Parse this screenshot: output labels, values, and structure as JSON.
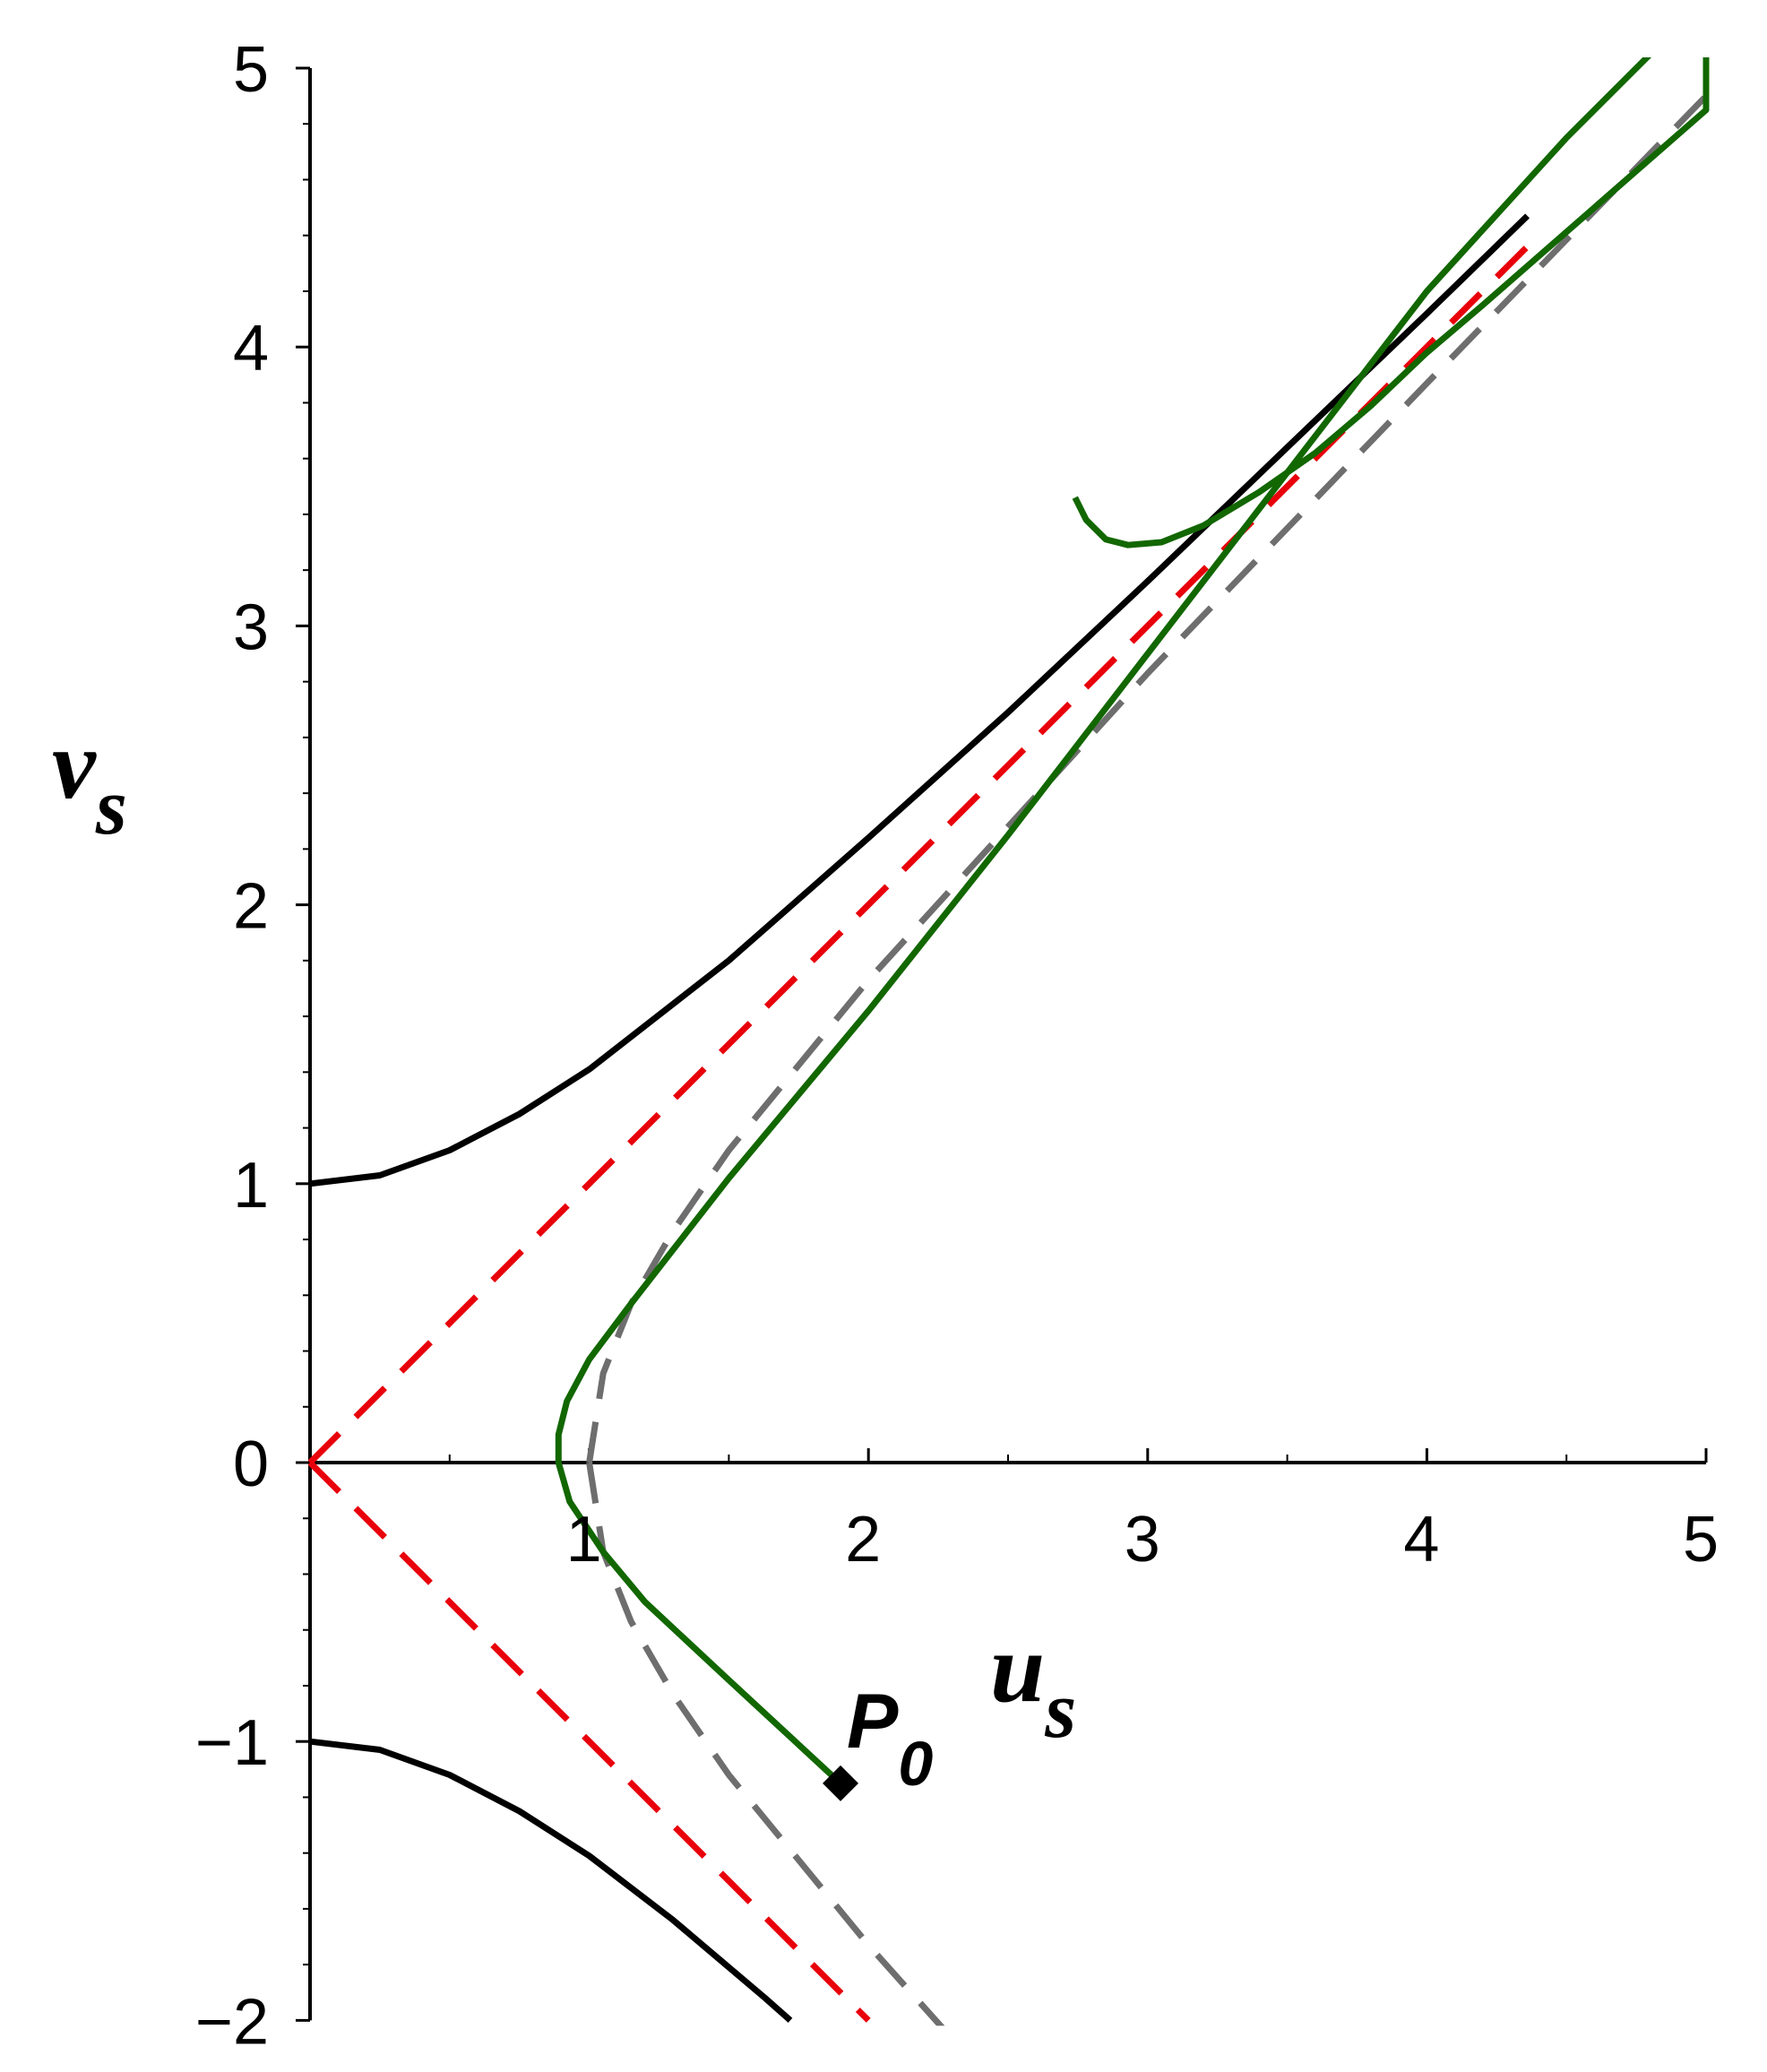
{
  "chart_data": {
    "type": "line",
    "title": "",
    "xlabel": {
      "main": "u",
      "sub": "s"
    },
    "ylabel": {
      "main": "v",
      "sub": "s"
    },
    "xlim": [
      0,
      5
    ],
    "ylim": [
      -2,
      5
    ],
    "x_ticks": [
      "1",
      "2",
      "3",
      "4",
      "5"
    ],
    "y_ticks": [
      "-2",
      "-1",
      "0",
      "1",
      "2",
      "3",
      "4",
      "5"
    ],
    "grid": false,
    "legend": "none",
    "series": [
      {
        "color": "#000000",
        "style": "solid",
        "points": [
          [
            0,
            1
          ],
          [
            0.25,
            1.03
          ],
          [
            0.5,
            1.12
          ],
          [
            0.75,
            1.25
          ],
          [
            1,
            1.41
          ],
          [
            1.5,
            1.8
          ],
          [
            2,
            2.24
          ],
          [
            2.5,
            2.69
          ],
          [
            3,
            3.16
          ],
          [
            3.5,
            3.64
          ],
          [
            4,
            4.12
          ],
          [
            4.36,
            4.47
          ]
        ]
      },
      {
        "color": "#000000",
        "style": "solid",
        "points": [
          [
            0,
            -1
          ],
          [
            0.25,
            -1.03
          ],
          [
            0.5,
            -1.12
          ],
          [
            0.75,
            -1.25
          ],
          [
            1,
            -1.41
          ],
          [
            1.3,
            -1.64
          ],
          [
            1.63,
            -1.92
          ],
          [
            1.72,
            -2
          ]
        ]
      },
      {
        "color": "#e8000b",
        "style": "dashed",
        "points": [
          [
            0,
            0
          ],
          [
            4.4,
            4.4
          ]
        ]
      },
      {
        "color": "#e8000b",
        "style": "dashed",
        "points": [
          [
            0,
            0
          ],
          [
            2,
            -2
          ]
        ]
      },
      {
        "color": "#6e6e6e",
        "style": "dashed",
        "points": [
          [
            1,
            0
          ],
          [
            1.05,
            0.32
          ],
          [
            1.15,
            0.57
          ],
          [
            1.3,
            0.83
          ],
          [
            1.5,
            1.12
          ],
          [
            2,
            1.73
          ],
          [
            3,
            2.83
          ],
          [
            4,
            3.87
          ],
          [
            5,
            4.9
          ]
        ]
      },
      {
        "color": "#6e6e6e",
        "style": "dashed",
        "points": [
          [
            1,
            0
          ],
          [
            1.05,
            -0.32
          ],
          [
            1.15,
            -0.57
          ],
          [
            1.3,
            -0.83
          ],
          [
            1.5,
            -1.12
          ],
          [
            2,
            -1.73
          ],
          [
            2.5,
            -2.29
          ]
        ]
      },
      {
        "color": "#126700",
        "style": "solid",
        "points": [
          [
            1.9,
            -1.15
          ],
          [
            1.5,
            -0.78
          ],
          [
            1.2,
            -0.5
          ],
          [
            1.05,
            -0.32
          ],
          [
            0.93,
            -0.14
          ],
          [
            0.89,
            0
          ],
          [
            0.89,
            0.1
          ],
          [
            0.92,
            0.22
          ],
          [
            1,
            0.37
          ],
          [
            1.15,
            0.57
          ],
          [
            1.5,
            1.02
          ],
          [
            2,
            1.62
          ],
          [
            2.5,
            2.25
          ],
          [
            3,
            2.9
          ],
          [
            3.5,
            3.55
          ],
          [
            4,
            4.2
          ],
          [
            4.5,
            4.75
          ],
          [
            5,
            5.25
          ]
        ]
      },
      {
        "color": "#126700",
        "style": "solid",
        "points": [
          [
            2.74,
            3.46
          ],
          [
            2.78,
            3.38
          ],
          [
            2.85,
            3.31
          ],
          [
            2.93,
            3.29
          ],
          [
            3.05,
            3.3
          ],
          [
            3.2,
            3.36
          ],
          [
            3.4,
            3.48
          ],
          [
            3.6,
            3.62
          ],
          [
            3.8,
            3.79
          ],
          [
            4,
            3.98
          ],
          [
            4.2,
            4.15
          ],
          [
            4.6,
            4.5
          ],
          [
            5,
            4.85
          ],
          [
            5,
            5.05
          ]
        ]
      }
    ],
    "marker": {
      "label_main": "P",
      "label_sub": "0",
      "x": 1.9,
      "y": -1.15,
      "shape": "diamond",
      "color": "#000000"
    }
  }
}
